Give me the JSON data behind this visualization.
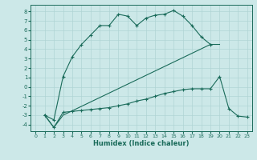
{
  "xlabel": "Humidex (Indice chaleur)",
  "background_color": "#cce8e8",
  "grid_color": "#b0d4d4",
  "line_color": "#1a6b5a",
  "xlim": [
    -0.5,
    23.5
  ],
  "ylim": [
    -4.7,
    8.7
  ],
  "xticks": [
    0,
    1,
    2,
    3,
    4,
    5,
    6,
    7,
    8,
    9,
    10,
    11,
    12,
    13,
    14,
    15,
    16,
    17,
    18,
    19,
    20,
    21,
    22,
    23
  ],
  "yticks": [
    -4,
    -3,
    -2,
    -1,
    0,
    1,
    2,
    3,
    4,
    5,
    6,
    7,
    8
  ],
  "line1_x": [
    1,
    2,
    3,
    4,
    5,
    6,
    7,
    8,
    9,
    10,
    11,
    12,
    13,
    14,
    15,
    16,
    17,
    18,
    19
  ],
  "line1_y": [
    -3.0,
    -3.5,
    1.1,
    3.2,
    4.5,
    5.5,
    6.5,
    6.5,
    7.7,
    7.5,
    6.5,
    7.3,
    7.6,
    7.7,
    8.1,
    7.5,
    6.5,
    5.3,
    4.5
  ],
  "line2_x": [
    1,
    2,
    3,
    19,
    20
  ],
  "line2_y": [
    -3.0,
    -4.3,
    -3.0,
    4.5,
    4.5
  ],
  "line3_x": [
    1,
    2,
    3,
    4,
    5,
    6,
    7,
    8,
    9,
    10,
    11,
    12,
    13,
    14,
    15,
    16,
    17,
    18,
    19,
    20,
    21,
    22,
    23
  ],
  "line3_y": [
    -3.0,
    -4.3,
    -2.7,
    -2.6,
    -2.5,
    -2.4,
    -2.3,
    -2.2,
    -2.0,
    -1.8,
    -1.5,
    -1.3,
    -1.0,
    -0.7,
    -0.5,
    -0.3,
    -0.2,
    -0.2,
    -0.2,
    1.1,
    -2.3,
    -3.1,
    -3.2
  ]
}
